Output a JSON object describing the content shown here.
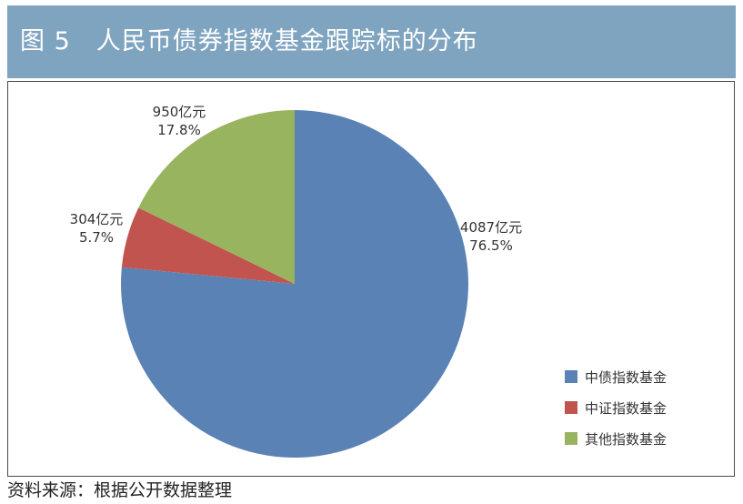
{
  "header": {
    "title": "图 5　人民币债券指数基金跟踪标的分布"
  },
  "footer": {
    "source": "资料来源：根据公开数据整理"
  },
  "colors": {
    "title_bg": "#7fa4c0",
    "frame": "#4a4a4a"
  },
  "chart_data": {
    "type": "pie",
    "title": "",
    "start_angle": "12 o'clock",
    "direction": "clockwise",
    "legend_position": "right-bottom",
    "slices": [
      {
        "name": "中债指数基金",
        "value": 4087,
        "value_label": "4087亿元",
        "percent_label": "76.5%",
        "color": "#5a82b5"
      },
      {
        "name": "中证指数基金",
        "value": 304,
        "value_label": "304亿元",
        "percent_label": "5.7%",
        "color": "#c25450"
      },
      {
        "name": "其他指数基金",
        "value": 950,
        "value_label": "950亿元",
        "percent_label": "17.8%",
        "color": "#98b45f"
      }
    ]
  }
}
